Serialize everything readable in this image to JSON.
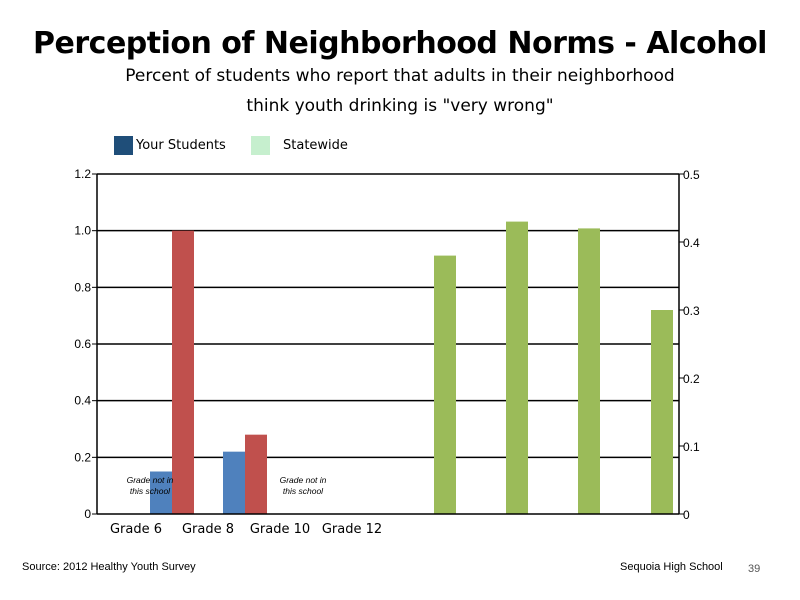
{
  "title": "Perception of Neighborhood Norms - Alcohol",
  "subtitle_line1": "Percent of students who report that adults in their neighborhood",
  "subtitle_line2": "think youth drinking is \"very wrong\"",
  "legend": [
    {
      "label": "Your Students",
      "color": "#1f4e79"
    },
    {
      "label": "Statewide",
      "color": "#c6efce"
    }
  ],
  "footer": {
    "source": "Source: 2012 Healthy Youth Survey",
    "school": "Sequoia High School",
    "page": "39"
  },
  "chart_data": {
    "type": "bar",
    "categories": [
      "Grade 6",
      "Grade 8",
      "Grade 10",
      "Grade 12"
    ],
    "left_axis": {
      "ylim": [
        0,
        1.2
      ],
      "ticks": [
        "0",
        "0.2",
        "0.4",
        "0.6",
        "0.8",
        "1.0",
        "1.2"
      ]
    },
    "right_axis": {
      "ylim": [
        0,
        0.5
      ],
      "ticks": [
        "0",
        "0.1",
        "0.2",
        "0.3",
        "0.4",
        "0.5"
      ]
    },
    "grid": true,
    "category_notes": [
      {
        "category": "Grade 6",
        "text": [
          "Grade not in",
          "this school"
        ]
      },
      {
        "category": "Grade 10",
        "text": [
          "Grade not in",
          "this school"
        ]
      }
    ],
    "series": [
      {
        "color": "#4f81bd",
        "axis": "left",
        "values": [
          null,
          null,
          0.15,
          0.22
        ]
      },
      {
        "color": "#c0504d",
        "axis": "left",
        "values": [
          null,
          null,
          1.0,
          0.28
        ]
      },
      {
        "color": "#9bbb59",
        "axis": "right",
        "values": [
          0.38,
          0.43,
          0.42,
          0.3
        ]
      }
    ]
  }
}
